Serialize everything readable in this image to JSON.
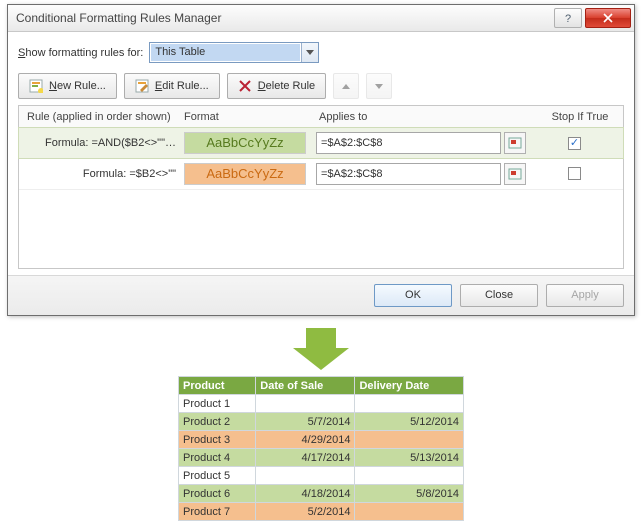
{
  "dialog": {
    "title": "Conditional Formatting Rules Manager",
    "show_label_pre": "S",
    "show_label_post": "how formatting rules for:",
    "dropdown_value": "This Table",
    "toolbar": {
      "new_rule": "New Rule...",
      "edit_rule": "Edit Rule...",
      "delete_rule": "Delete Rule"
    },
    "columns": {
      "rule": "Rule (applied in order shown)",
      "format": "Format",
      "applies": "Applies to",
      "stop": "Stop If True"
    },
    "preview_text": "AaBbCcYyZz",
    "rules": [
      {
        "formula": "Formula: =AND($B2<>\"\"…",
        "bg": "#c5dba0",
        "fg": "#567a1e",
        "applies": "=$A$2:$C$8",
        "stop": true,
        "selected": true
      },
      {
        "formula": "Formula: =$B2<>\"\"",
        "bg": "#f5bf8e",
        "fg": "#ca6a12",
        "applies": "=$A$2:$C$8",
        "stop": false,
        "selected": false
      }
    ],
    "footer": {
      "ok": "OK",
      "close": "Close",
      "apply": "Apply"
    }
  },
  "sheet": {
    "headers": [
      "Product",
      "Date of Sale",
      "Delivery Date"
    ],
    "rows": [
      {
        "cls": "",
        "cells": [
          "Product 1",
          "",
          ""
        ]
      },
      {
        "cls": "green",
        "cells": [
          "Product 2",
          "5/7/2014",
          "5/12/2014"
        ]
      },
      {
        "cls": "orange",
        "cells": [
          "Product 3",
          "4/29/2014",
          ""
        ]
      },
      {
        "cls": "green",
        "cells": [
          "Product 4",
          "4/17/2014",
          "5/13/2014"
        ]
      },
      {
        "cls": "",
        "cells": [
          "Product 5",
          "",
          ""
        ]
      },
      {
        "cls": "green",
        "cells": [
          "Product 6",
          "4/18/2014",
          "5/8/2014"
        ]
      },
      {
        "cls": "orange",
        "cells": [
          "Product 7",
          "5/2/2014",
          ""
        ]
      }
    ]
  },
  "colors": {
    "header_bg": "#7aa842",
    "arrow": "#8fbb41"
  }
}
